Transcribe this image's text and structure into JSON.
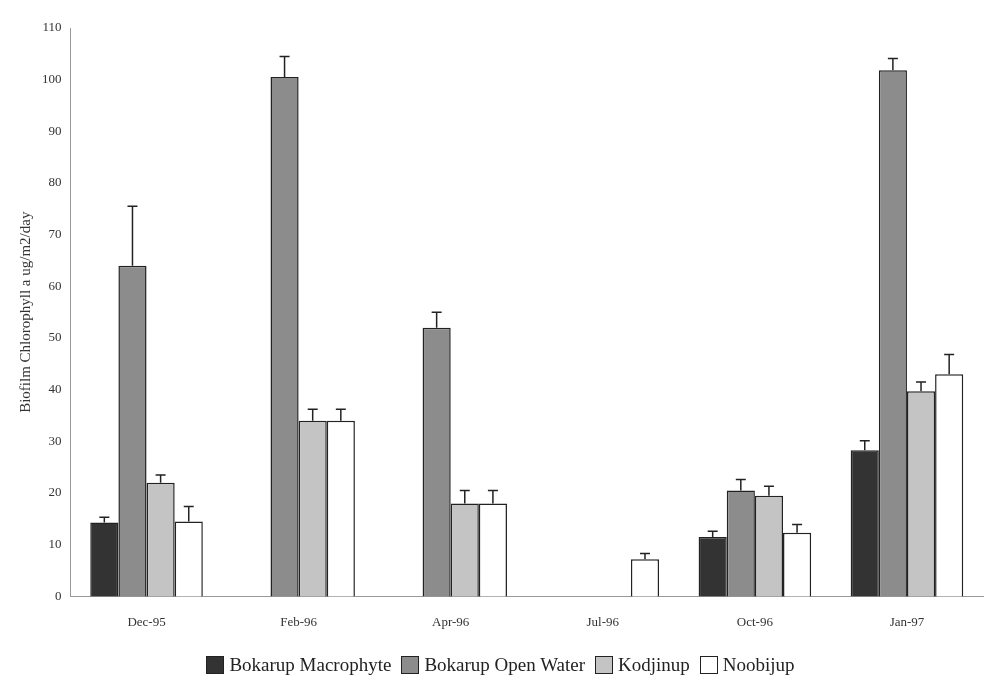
{
  "chart_data": {
    "type": "bar",
    "ylabel": "Biofilm Chlorophyll a ug/m2/day",
    "categories": [
      "Dec-95",
      "Feb-96",
      "Apr-96",
      "Jul-96",
      "Oct-96",
      "Jan-97"
    ],
    "series": [
      {
        "name": "Bokarup Macrophyte",
        "color": "#333333",
        "values": [
          14.3,
          null,
          null,
          null,
          11.5,
          28.3
        ],
        "errors": [
          [
            14.3,
            15.3
          ],
          null,
          null,
          null,
          [
            11.5,
            12.6
          ],
          [
            28.3,
            30.1
          ]
        ]
      },
      {
        "name": "Bokarup Open Water",
        "color": "#8c8c8c",
        "values": [
          64,
          100.5,
          52,
          null,
          20.5,
          101.8
        ],
        "errors": [
          [
            64,
            75.5
          ],
          [
            100.5,
            104.5
          ],
          [
            52,
            55
          ],
          null,
          [
            20.5,
            22.6
          ],
          [
            101.8,
            104.1
          ]
        ]
      },
      {
        "name": "Kodjinup",
        "color": "#c4c4c4",
        "values": [
          22,
          34,
          18,
          null,
          19.5,
          39.7
        ],
        "errors": [
          [
            22,
            23.5
          ],
          [
            34,
            36.2
          ],
          [
            18,
            20.5
          ],
          null,
          [
            19.5,
            21.3
          ],
          [
            39.7,
            41.5
          ]
        ]
      },
      {
        "name": "Noobijup",
        "color": "#ffffff",
        "values": [
          14.5,
          34,
          18,
          7.2,
          12.3,
          43
        ],
        "errors": [
          [
            14.5,
            17.4
          ],
          [
            34,
            36.2
          ],
          [
            18,
            20.5
          ],
          [
            7.2,
            8.3
          ],
          [
            12.3,
            13.9
          ],
          [
            43,
            46.8
          ]
        ]
      }
    ],
    "ylim": [
      0,
      110
    ],
    "yticks": [
      0,
      10,
      20,
      30,
      40,
      50,
      60,
      70,
      80,
      90,
      100,
      110
    ],
    "grid": false,
    "legend": "bottom"
  }
}
